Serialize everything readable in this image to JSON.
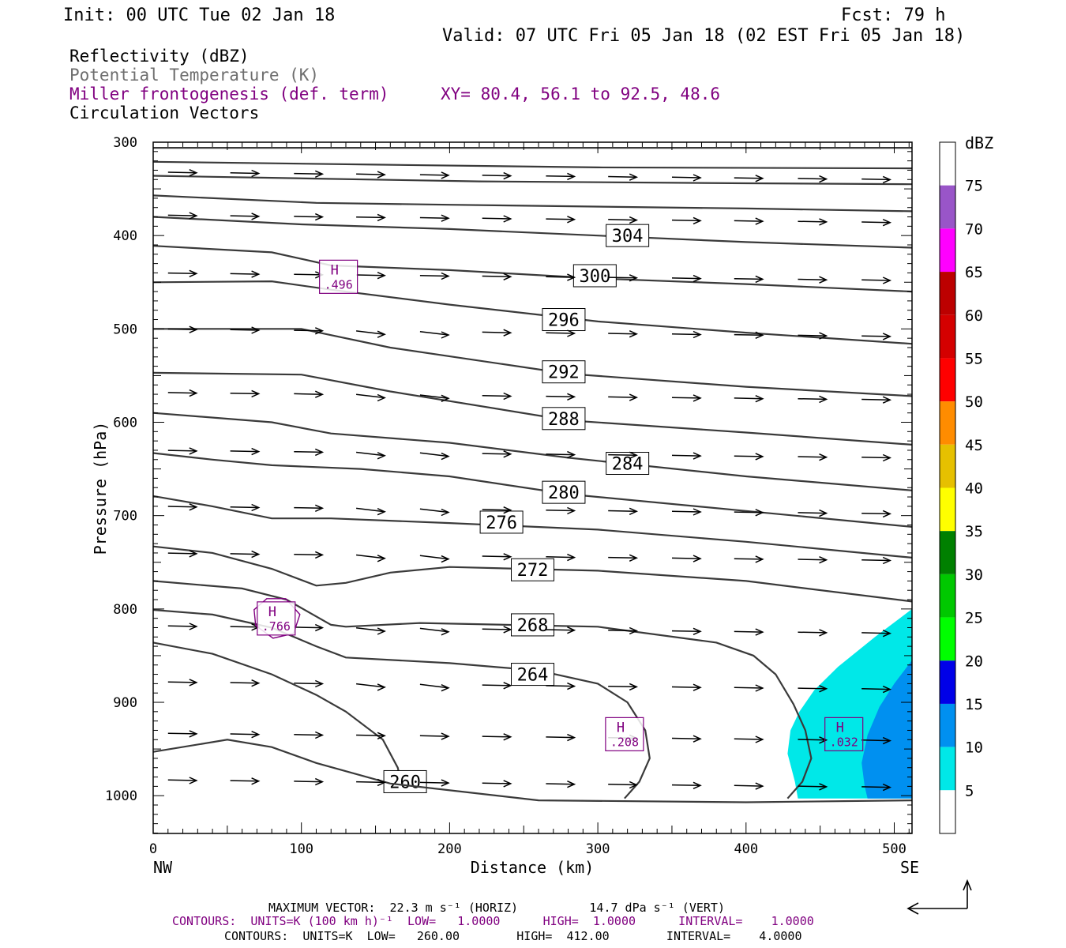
{
  "header": {
    "init": "Init: 00 UTC Tue 02 Jan 18",
    "fcst": "Fcst:   79 h",
    "valid": "Valid: 07 UTC Fri 05 Jan 18 (02 EST Fri 05 Jan 18)",
    "fields": [
      {
        "text": "Reflectivity (dBZ)",
        "color": "#000000"
      },
      {
        "text": "Potential Temperature (K)",
        "color": "#6e6e6e"
      },
      {
        "text": "Miller frontogenesis (def. term)",
        "color": "#800080"
      },
      {
        "text": "Circulation Vectors",
        "color": "#000000"
      }
    ],
    "xy": "XY=  80.4, 56.1 to  92.5, 48.6"
  },
  "footer": {
    "max_vector": "MAXIMUM VECTOR:  22.3 m s⁻¹ (HORIZ)          14.7 dPa s⁻¹ (VERT)",
    "contours_front": "CONTOURS:  UNITS=K (100 km h)⁻¹  LOW=   1.0000      HIGH=  1.0000      INTERVAL=    1.0000",
    "contours_theta": "CONTOURS:  UNITS=K  LOW=   260.00        HIGH=  412.00        INTERVAL=    4.0000"
  },
  "colors": {
    "theta": "#3a3a3a",
    "frontogenesis": "#800080",
    "vectors": "#000000"
  },
  "chart_data": {
    "type": "cross-section",
    "xlabel": "Distance (km)",
    "ylabel": "Pressure (hPa)",
    "x_ticks": [
      0,
      100,
      200,
      300,
      400,
      500
    ],
    "y_ticks": [
      300,
      400,
      500,
      600,
      700,
      800,
      900,
      1000
    ],
    "xlim": [
      0,
      512
    ],
    "ylim": [
      1040,
      300
    ],
    "y_scale": "linear-inverted",
    "left_end_label": "NW",
    "right_end_label": "SE",
    "reflectivity_legend": {
      "unit": "dBZ",
      "levels": [
        5,
        10,
        15,
        20,
        25,
        30,
        35,
        40,
        45,
        50,
        55,
        60,
        65,
        70,
        75
      ],
      "colors": [
        "#ffffff",
        "#00e8e8",
        "#0090f0",
        "#0000e8",
        "#00ff00",
        "#00c800",
        "#008000",
        "#ffff00",
        "#e6c000",
        "#ff8c00",
        "#ff0000",
        "#d40000",
        "#bc0000",
        "#ff00ff",
        "#9955c8",
        "#ffffff"
      ]
    },
    "reflectivity_areas": [
      {
        "dbz": 5,
        "points": [
          [
            512,
            800
          ],
          [
            487,
            830
          ],
          [
            462,
            862
          ],
          [
            446,
            887
          ],
          [
            436,
            910
          ],
          [
            430,
            930
          ],
          [
            428,
            955
          ],
          [
            433,
            985
          ],
          [
            435,
            1003
          ],
          [
            512,
            1003
          ]
        ]
      },
      {
        "dbz": 10,
        "points": [
          [
            512,
            855
          ],
          [
            500,
            880
          ],
          [
            490,
            905
          ],
          [
            482,
            935
          ],
          [
            478,
            965
          ],
          [
            480,
            990
          ],
          [
            482,
            1003
          ],
          [
            512,
            1003
          ]
        ]
      }
    ],
    "theta_contours": [
      {
        "label": "304",
        "label_at": [
          320,
          400
        ],
        "points": [
          [
            0,
            380
          ],
          [
            100,
            388
          ],
          [
            200,
            393
          ],
          [
            300,
            400
          ],
          [
            400,
            407
          ],
          [
            512,
            413
          ]
        ]
      },
      {
        "label": "300",
        "label_at": [
          298,
          443
        ],
        "points": [
          [
            0,
            411
          ],
          [
            80,
            418
          ],
          [
            120,
            432
          ],
          [
            200,
            437
          ],
          [
            300,
            446
          ],
          [
            400,
            452
          ],
          [
            512,
            460
          ]
        ]
      },
      {
        "label": "296",
        "label_at": [
          277,
          490
        ],
        "points": [
          [
            0,
            450
          ],
          [
            80,
            449
          ],
          [
            120,
            458
          ],
          [
            200,
            474
          ],
          [
            300,
            492
          ],
          [
            400,
            504
          ],
          [
            512,
            516
          ]
        ]
      },
      {
        "label": "292",
        "label_at": [
          277,
          546
        ],
        "points": [
          [
            0,
            500
          ],
          [
            100,
            500
          ],
          [
            160,
            520
          ],
          [
            280,
            548
          ],
          [
            400,
            562
          ],
          [
            512,
            572
          ]
        ]
      },
      {
        "label": "288",
        "label_at": [
          277,
          596
        ],
        "points": [
          [
            0,
            547
          ],
          [
            100,
            549
          ],
          [
            160,
            567
          ],
          [
            280,
            598
          ],
          [
            400,
            611
          ],
          [
            512,
            624
          ]
        ]
      },
      {
        "label": "284",
        "label_at": [
          320,
          644
        ],
        "points": [
          [
            0,
            590
          ],
          [
            80,
            600
          ],
          [
            120,
            612
          ],
          [
            200,
            622
          ],
          [
            280,
            638
          ],
          [
            400,
            658
          ],
          [
            512,
            673
          ]
        ]
      },
      {
        "label": "280",
        "label_at": [
          277,
          675
        ],
        "points": [
          [
            0,
            633
          ],
          [
            40,
            640
          ],
          [
            80,
            646
          ],
          [
            140,
            650
          ],
          [
            200,
            658
          ],
          [
            280,
            677
          ],
          [
            400,
            695
          ],
          [
            512,
            712
          ]
        ]
      },
      {
        "label": "276",
        "label_at": [
          235,
          707
        ],
        "points": [
          [
            0,
            679
          ],
          [
            40,
            690
          ],
          [
            80,
            703
          ],
          [
            120,
            703
          ],
          [
            200,
            708
          ],
          [
            300,
            715
          ],
          [
            400,
            728
          ],
          [
            512,
            745
          ]
        ]
      },
      {
        "label": "272",
        "label_at": [
          256,
          758
        ],
        "points": [
          [
            0,
            733
          ],
          [
            40,
            740
          ],
          [
            80,
            757
          ],
          [
            110,
            775
          ],
          [
            130,
            772
          ],
          [
            160,
            761
          ],
          [
            200,
            755
          ],
          [
            300,
            759
          ],
          [
            400,
            770
          ],
          [
            512,
            792
          ]
        ]
      },
      {
        "label": "268",
        "label_at": [
          256,
          817
        ],
        "points": [
          [
            0,
            770
          ],
          [
            60,
            778
          ],
          [
            90,
            790
          ],
          [
            120,
            817
          ],
          [
            130,
            819
          ],
          [
            180,
            815
          ],
          [
            300,
            819
          ],
          [
            380,
            836
          ],
          [
            405,
            850
          ],
          [
            420,
            870
          ],
          [
            432,
            902
          ],
          [
            440,
            930
          ],
          [
            444,
            960
          ],
          [
            438,
            985
          ],
          [
            428,
            1003
          ]
        ]
      },
      {
        "label": "264",
        "label_at": [
          256,
          870
        ],
        "points": [
          [
            0,
            801
          ],
          [
            40,
            806
          ],
          [
            80,
            820
          ],
          [
            110,
            840
          ],
          [
            130,
            852
          ],
          [
            200,
            858
          ],
          [
            260,
            866
          ],
          [
            300,
            880
          ],
          [
            320,
            900
          ],
          [
            332,
            930
          ],
          [
            335,
            960
          ],
          [
            328,
            985
          ],
          [
            318,
            1003
          ]
        ]
      },
      {
        "label": "260",
        "label_at": [
          170,
          985
        ],
        "points": [
          [
            0,
            836
          ],
          [
            40,
            848
          ],
          [
            80,
            870
          ],
          [
            110,
            892
          ],
          [
            130,
            910
          ],
          [
            155,
            940
          ],
          [
            165,
            970
          ],
          [
            168,
            990
          ]
        ]
      },
      {
        "label": "",
        "label_at": null,
        "points": [
          [
            0,
            953
          ],
          [
            50,
            940
          ],
          [
            80,
            948
          ],
          [
            110,
            965
          ],
          [
            160,
            987
          ],
          [
            260,
            1005
          ],
          [
            400,
            1007
          ],
          [
            512,
            1005
          ]
        ]
      },
      {
        "label": "",
        "label_at": null,
        "points": [
          [
            0,
            306
          ],
          [
            512,
            306
          ]
        ]
      },
      {
        "label": "",
        "label_at": null,
        "points": [
          [
            0,
            321
          ],
          [
            150,
            324
          ],
          [
            300,
            327
          ],
          [
            512,
            328
          ]
        ]
      },
      {
        "label": "",
        "label_at": null,
        "points": [
          [
            0,
            336
          ],
          [
            110,
            339
          ],
          [
            220,
            342
          ],
          [
            400,
            344
          ],
          [
            512,
            345
          ]
        ]
      },
      {
        "label": "",
        "label_at": null,
        "points": [
          [
            0,
            357
          ],
          [
            110,
            365
          ],
          [
            200,
            367
          ],
          [
            400,
            371
          ],
          [
            512,
            374
          ]
        ]
      }
    ],
    "frontogenesis_maxima": [
      {
        "label": "H",
        "value": ".496",
        "at": [
          125,
          445
        ]
      },
      {
        "label": "H",
        "value": ".766",
        "at": [
          83,
          811
        ]
      },
      {
        "label": "H",
        "value": ".208",
        "at": [
          318,
          935
        ]
      },
      {
        "label": "H",
        "value": ".032",
        "at": [
          466,
          935
        ]
      }
    ],
    "vector_scale": {
      "horizontal": "22.3 m s-1",
      "vertical": "14.7 dPa s-1"
    }
  }
}
